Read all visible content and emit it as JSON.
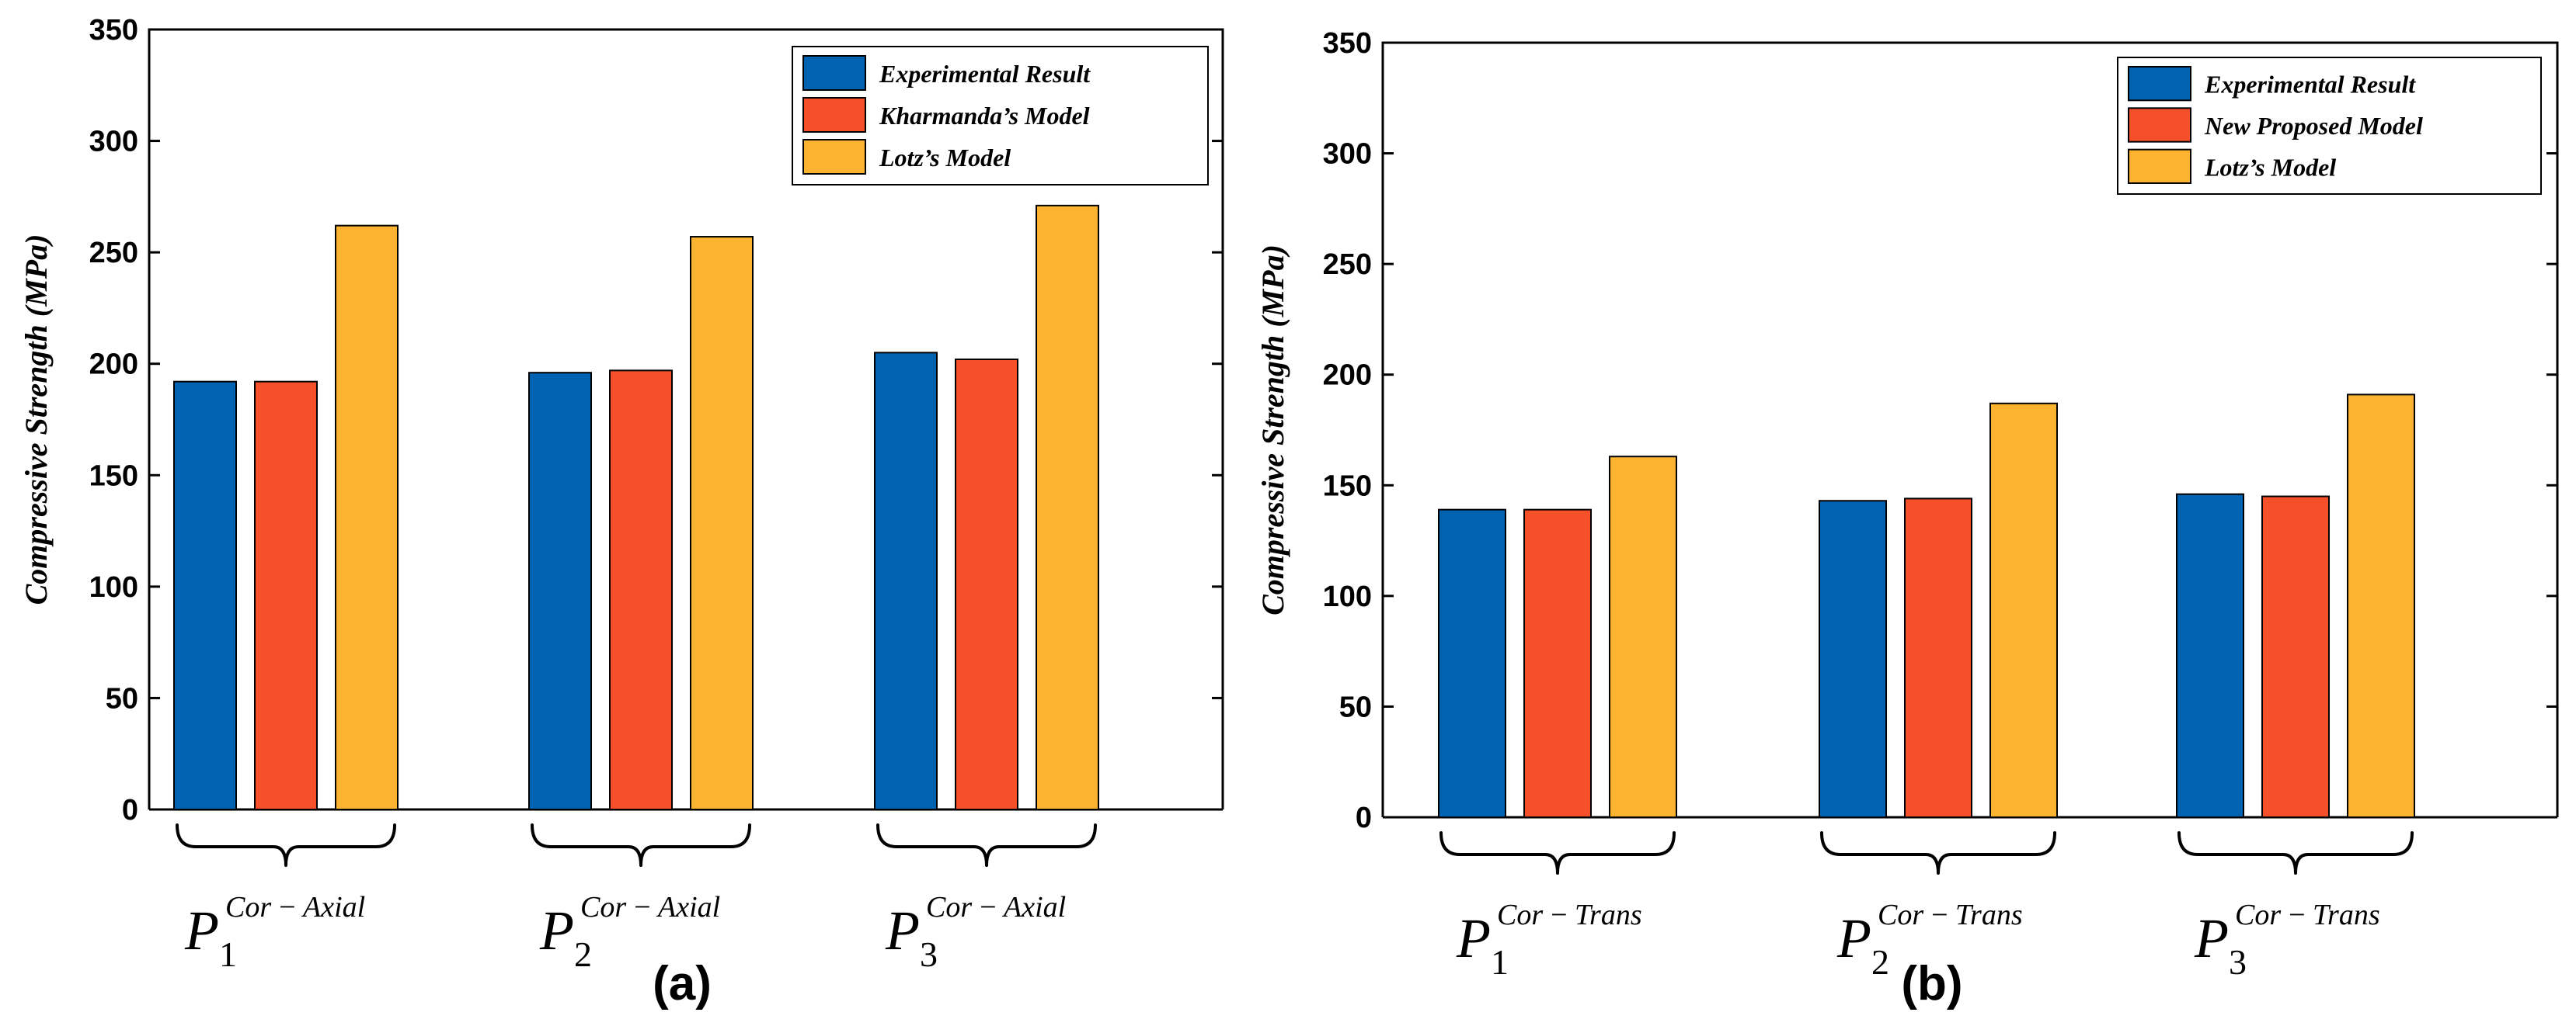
{
  "chart_data": [
    {
      "type": "bar",
      "panel_label": "(a)",
      "ylabel": "Compressive Strength (MPa)",
      "ylim": [
        0,
        350
      ],
      "yticks": [
        0,
        50,
        100,
        150,
        200,
        250,
        300,
        350
      ],
      "grid": false,
      "legend_position": "top-right",
      "categories": [
        {
          "main": "P",
          "sub": "1",
          "sup": "Cor − Axial"
        },
        {
          "main": "P",
          "sub": "2",
          "sup": "Cor − Axial"
        },
        {
          "main": "P",
          "sub": "3",
          "sup": "Cor − Axial"
        }
      ],
      "series": [
        {
          "name": "Experimental Result",
          "color": "#0063B1",
          "values": [
            192,
            196,
            205
          ]
        },
        {
          "name": "Kharmanda’s Model",
          "color": "#F5502A",
          "values": [
            192,
            197,
            202
          ]
        },
        {
          "name": "Lotz’s Model",
          "color": "#FBB330",
          "values": [
            262,
            257,
            271
          ]
        }
      ]
    },
    {
      "type": "bar",
      "panel_label": "(b)",
      "ylabel": "Compressive Strength (MPa)",
      "ylim": [
        0,
        350
      ],
      "yticks": [
        0,
        50,
        100,
        150,
        200,
        250,
        300,
        350
      ],
      "grid": false,
      "legend_position": "top-right",
      "categories": [
        {
          "main": "P",
          "sub": "1",
          "sup": "Cor − Trans"
        },
        {
          "main": "P",
          "sub": "2",
          "sup": "Cor − Trans"
        },
        {
          "main": "P",
          "sub": "3",
          "sup": "Cor − Trans"
        }
      ],
      "series": [
        {
          "name": "Experimental Result",
          "color": "#0063B1",
          "values": [
            139,
            143,
            146
          ]
        },
        {
          "name": "New Proposed Model",
          "color": "#F5502A",
          "values": [
            139,
            144,
            145
          ]
        },
        {
          "name": "Lotz’s Model",
          "color": "#FBB330",
          "values": [
            163,
            187,
            191
          ]
        }
      ]
    }
  ]
}
